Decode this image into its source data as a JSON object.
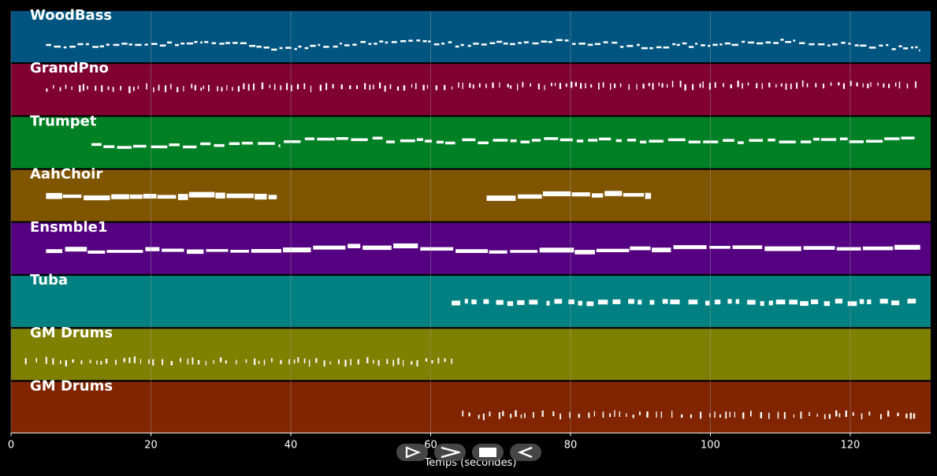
{
  "chart_data": {
    "type": "piano-roll",
    "xlabel": "Temps (secondes)",
    "xlim": [
      0,
      131.5
    ],
    "x_ticks": [
      0,
      20,
      40,
      60,
      80,
      100,
      120
    ],
    "grid": true,
    "tracks": [
      {
        "name": "WoodBass",
        "color": "#005580",
        "style": "dashes",
        "segments": [
          [
            5,
            130
          ]
        ],
        "note_len": 0.6,
        "gap": 0.35,
        "thickness": 2.5,
        "band": [
          0.55,
          0.8
        ],
        "contour": [
          [
            5,
            0.68
          ],
          [
            20,
            0.66
          ],
          [
            30,
            0.62
          ],
          [
            38,
            0.72
          ],
          [
            55,
            0.6
          ],
          [
            65,
            0.66
          ],
          [
            80,
            0.6
          ],
          [
            90,
            0.7
          ],
          [
            110,
            0.6
          ],
          [
            130,
            0.74
          ]
        ]
      },
      {
        "name": "GrandPno",
        "color": "#800030",
        "style": "ticks",
        "segments": [
          [
            5,
            130
          ]
        ],
        "note_len": 0.3,
        "gap": 0.55,
        "thickness": 1.5,
        "band": [
          0.35,
          0.55
        ],
        "contour": [
          [
            5,
            0.48
          ],
          [
            130,
            0.4
          ]
        ]
      },
      {
        "name": "Trumpet",
        "color": "#008025",
        "style": "legato",
        "segments": [
          [
            11.5,
            38.5
          ],
          [
            39,
            63.5
          ],
          [
            64.5,
            129.5
          ]
        ],
        "note_len": 1.6,
        "gap": 0.5,
        "thickness": 3.5,
        "band": [
          0.4,
          0.6
        ],
        "contour": [
          [
            11.5,
            0.56
          ],
          [
            20,
            0.58
          ],
          [
            30,
            0.52
          ],
          [
            38,
            0.56
          ],
          [
            39,
            0.46
          ],
          [
            50,
            0.44
          ],
          [
            60,
            0.48
          ],
          [
            64.5,
            0.48
          ],
          [
            80,
            0.44
          ],
          [
            100,
            0.48
          ],
          [
            120,
            0.46
          ],
          [
            129.5,
            0.44
          ]
        ]
      },
      {
        "name": "AahChoir",
        "color": "#805500",
        "style": "block",
        "segments": [
          [
            5,
            38
          ],
          [
            68,
            91.5
          ]
        ],
        "note_len": 2.6,
        "gap": 0.2,
        "thickness": 6,
        "band": [
          0.4,
          0.6
        ],
        "contour": [
          [
            5,
            0.54
          ],
          [
            20,
            0.52
          ],
          [
            30,
            0.48
          ],
          [
            38,
            0.5
          ],
          [
            68,
            0.52
          ],
          [
            80,
            0.48
          ],
          [
            91.5,
            0.5
          ]
        ]
      },
      {
        "name": "Ensmble1",
        "color": "#550080",
        "style": "block",
        "segments": [
          [
            5,
            130
          ]
        ],
        "note_len": 3.5,
        "gap": 0.25,
        "thickness": 5,
        "band": [
          0.4,
          0.6
        ],
        "contour": [
          [
            5,
            0.54
          ],
          [
            30,
            0.54
          ],
          [
            40,
            0.5
          ],
          [
            55,
            0.46
          ],
          [
            65,
            0.54
          ],
          [
            85,
            0.54
          ],
          [
            105,
            0.46
          ],
          [
            117,
            0.5
          ],
          [
            130,
            0.48
          ]
        ]
      },
      {
        "name": "Tuba",
        "color": "#008080",
        "style": "dashes",
        "segments": [
          [
            63,
            130
          ]
        ],
        "note_len": 0.9,
        "gap": 0.8,
        "thickness": 6,
        "band": [
          0.45,
          0.6
        ],
        "contour": [
          [
            63,
            0.52
          ],
          [
            130,
            0.52
          ]
        ]
      },
      {
        "name": "GM Drums",
        "color": "#808000",
        "style": "ticks",
        "segments": [
          [
            2,
            63
          ]
        ],
        "note_len": 0.3,
        "gap": 0.7,
        "thickness": 1.5,
        "band": [
          0.55,
          0.75
        ],
        "contour": [
          [
            2,
            0.64
          ],
          [
            63,
            0.64
          ]
        ]
      },
      {
        "name": "GM Drums",
        "color": "#802500",
        "style": "ticks",
        "segments": [
          [
            64.5,
            129.5
          ]
        ],
        "note_len": 0.3,
        "gap": 0.75,
        "thickness": 1.5,
        "band": [
          0.55,
          0.75
        ],
        "contour": [
          [
            64.5,
            0.65
          ],
          [
            129.5,
            0.65
          ]
        ]
      }
    ]
  },
  "controls": [
    {
      "name": "play-icon"
    },
    {
      "name": "fast-forward-icon"
    },
    {
      "name": "stop-icon"
    },
    {
      "name": "rewind-icon"
    }
  ],
  "colors": {
    "background": "#000000",
    "grid": "#999999",
    "note": "#ffffff",
    "control": "#505050"
  }
}
